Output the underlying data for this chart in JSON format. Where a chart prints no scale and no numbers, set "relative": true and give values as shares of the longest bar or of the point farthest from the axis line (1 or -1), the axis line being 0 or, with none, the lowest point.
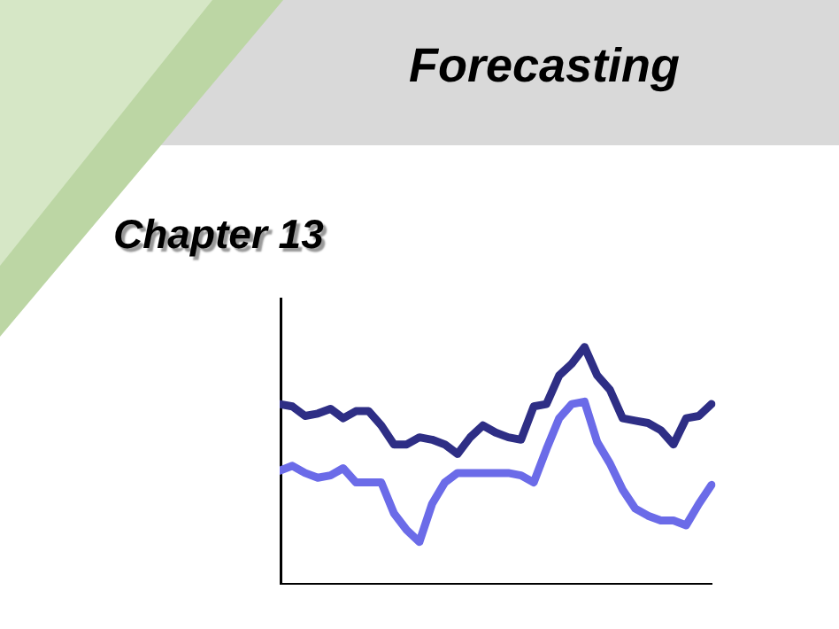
{
  "chart_data": {
    "type": "line",
    "title": "Forecasting",
    "subtitle": "Chapter 13",
    "categories": [
      null,
      null,
      null,
      null,
      null,
      null,
      null,
      null,
      null,
      null,
      null,
      null,
      null,
      null,
      null,
      null,
      null,
      null,
      null,
      null,
      null,
      null,
      null,
      null,
      null,
      null,
      null,
      null,
      null,
      null,
      null,
      null,
      null,
      null,
      null
    ],
    "series": [
      {
        "color": "#2e2e85",
        "values": [
          0.76,
          0.75,
          0.71,
          0.72,
          0.74,
          0.7,
          0.73,
          0.73,
          0.67,
          0.59,
          0.59,
          0.62,
          0.61,
          0.59,
          0.55,
          0.62,
          0.67,
          0.64,
          0.62,
          0.61,
          0.75,
          0.76,
          0.88,
          0.93,
          1.0,
          0.88,
          0.82,
          0.7,
          0.69,
          0.68,
          0.65,
          0.59,
          0.7,
          0.71,
          0.76
        ]
      },
      {
        "color": "#6b6be8",
        "values": [
          0.48,
          0.5,
          0.47,
          0.45,
          0.46,
          0.49,
          0.43,
          0.43,
          0.43,
          0.3,
          0.23,
          0.18,
          0.34,
          0.43,
          0.47,
          0.47,
          0.47,
          0.47,
          0.47,
          0.46,
          0.43,
          0.57,
          0.7,
          0.76,
          0.77,
          0.6,
          0.51,
          0.4,
          0.32,
          0.29,
          0.27,
          0.27,
          0.25,
          0.34,
          0.42
        ]
      }
    ],
    "relative": true,
    "grid": false,
    "legend": false,
    "marker": "none",
    "line_style": "solid"
  }
}
